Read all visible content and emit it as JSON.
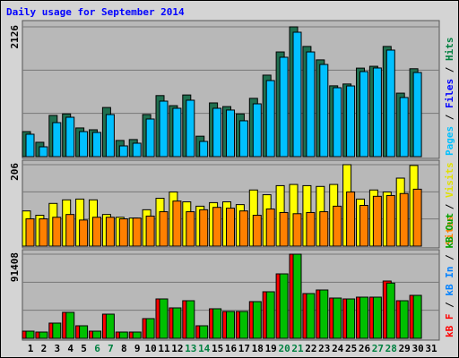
{
  "title": "Daily usage for September 2014",
  "chart_data": [
    {
      "type": "bar",
      "legend": [
        {
          "label": "Pages",
          "color": "#00c0ff"
        },
        {
          "label": "Files",
          "color": "#0000ff"
        },
        {
          "label": "Hits",
          "color": "#008040"
        }
      ],
      "legend_separator": " / ",
      "series": [
        {
          "color": "#1f6f4f",
          "values": [
            410,
            235,
            675,
            700,
            470,
            440,
            805,
            265,
            280,
            690,
            1000,
            835,
            1010,
            335,
            880,
            820,
            700,
            955,
            1335,
            1715,
            2126,
            1805,
            1585,
            1160,
            1190,
            1450,
            1480,
            1805,
            1040,
            1440,
            null
          ]
        },
        {
          "color": "#00c0ff",
          "values": [
            367,
            161,
            557,
            645,
            410,
            396,
            689,
            176,
            220,
            616,
            909,
            792,
            924,
            249,
            792,
            763,
            587,
            865,
            1246,
            1628,
            2038,
            1715,
            1510,
            1129,
            1158,
            1393,
            1452,
            1745,
            968,
            1378,
            null
          ]
        }
      ],
      "ylim": [
        0,
        2126
      ],
      "yticks": [
        2126
      ]
    },
    {
      "type": "bar",
      "legend": [
        {
          "label": "Sites",
          "color": "#ff8000"
        },
        {
          "label": "Visits",
          "color": "#e0e000"
        }
      ],
      "legend_separator": " / ",
      "series": [
        {
          "color": "#ffff00",
          "values": [
            89,
            78,
            108,
            117,
            119,
            117,
            80,
            73,
            71,
            92,
            121,
            137,
            112,
            101,
            110,
            112,
            105,
            142,
            130,
            153,
            156,
            153,
            151,
            156,
            206,
            119,
            142,
            137,
            172,
            204,
            null
          ]
        },
        {
          "color": "#ff8000",
          "values": [
            69,
            69,
            73,
            80,
            66,
            73,
            73,
            69,
            71,
            76,
            87,
            114,
            87,
            92,
            98,
            96,
            89,
            78,
            94,
            85,
            82,
            85,
            87,
            101,
            137,
            103,
            126,
            128,
            133,
            144,
            null
          ]
        }
      ],
      "ylim": [
        0,
        206
      ],
      "yticks": [
        206
      ]
    },
    {
      "type": "bar",
      "legend": [
        {
          "label": "kB F",
          "color": "#ff0000"
        },
        {
          "label": "kB In",
          "color": "#0080ff"
        },
        {
          "label": "kB Out",
          "color": "#00a000"
        }
      ],
      "legend_separator": " / ",
      "categories": [
        "1",
        "2",
        "3",
        "4",
        "5",
        "6",
        "7",
        "8",
        "9",
        "10",
        "11",
        "12",
        "13",
        "14",
        "15",
        "16",
        "17",
        "18",
        "19",
        "20",
        "21",
        "22",
        "23",
        "24",
        "25",
        "26",
        "27",
        "28",
        "29",
        "30",
        "31"
      ],
      "weekend_categories": [
        "6",
        "7",
        "13",
        "14",
        "20",
        "21",
        "27",
        "28"
      ],
      "weekend_color": "#008040",
      "series": [
        {
          "color": "#ff0000",
          "values": [
            7779,
            6807,
            16531,
            28200,
            13614,
            7779,
            26255,
            6807,
            6807,
            21393,
            42786,
            33062,
            40841,
            13614,
            32090,
            29172,
            29172,
            39869,
            50565,
            70013,
            91408,
            48621,
            52510,
            43759,
            42786,
            44731,
            44731,
            62235,
            40841,
            46676,
            null
          ]
        },
        {
          "color": "#00c000",
          "values": [
            7779,
            6807,
            16531,
            28200,
            13614,
            7779,
            26255,
            6807,
            6807,
            21393,
            42786,
            33062,
            40841,
            13614,
            32090,
            29172,
            29172,
            39869,
            50565,
            70013,
            91408,
            48621,
            52510,
            43759,
            42786,
            44731,
            44731,
            60000,
            40841,
            46676,
            null
          ]
        }
      ],
      "ylim": [
        0,
        91408
      ],
      "yticks": [
        91408
      ]
    }
  ]
}
